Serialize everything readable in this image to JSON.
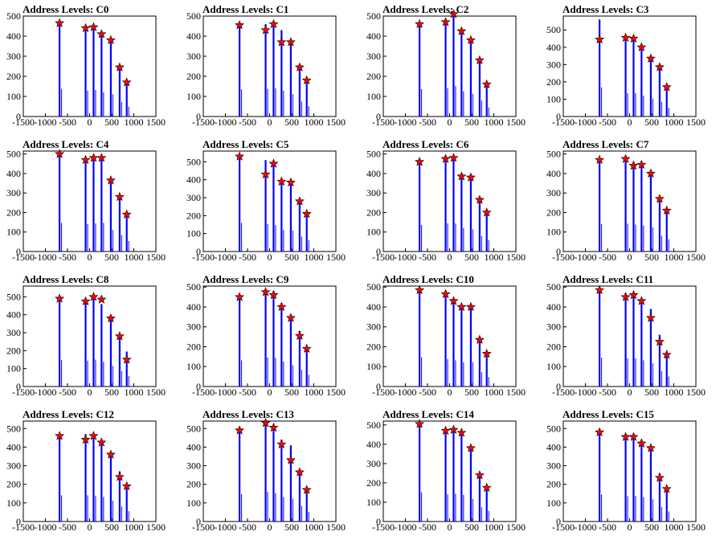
{
  "page": {
    "background": "#ffffff"
  },
  "style": {
    "hist_color": "#0000ff",
    "peak_marker_color": "#ff0000",
    "axis_color": "#000000"
  },
  "chart_data": [
    {
      "type": "bar",
      "title": "Address Levels: C0",
      "xlim": [
        -1500,
        1500
      ],
      "ylim": [
        0,
        500
      ],
      "xticks": [
        -1500,
        -1000,
        -500,
        0,
        500,
        1000,
        1500
      ],
      "yticks": [
        0,
        100,
        200,
        300,
        400,
        500
      ],
      "bars": [
        [
          -680,
          460
        ],
        [
          -90,
          430
        ],
        [
          90,
          440
        ],
        [
          270,
          400
        ],
        [
          480,
          370
        ],
        [
          680,
          245
        ],
        [
          840,
          165
        ]
      ],
      "peaks": [
        [
          -680,
          465
        ],
        [
          -90,
          440
        ],
        [
          90,
          445
        ],
        [
          270,
          410
        ],
        [
          480,
          380
        ],
        [
          680,
          245
        ],
        [
          840,
          170
        ]
      ]
    },
    {
      "type": "bar",
      "title": "Address Levels: C1",
      "xlim": [
        -1500,
        1500
      ],
      "ylim": [
        0,
        500
      ],
      "xticks": [
        -1500,
        -1000,
        -500,
        0,
        500,
        1000,
        1500
      ],
      "yticks": [
        0,
        100,
        200,
        300,
        400,
        500
      ],
      "bars": [
        [
          -680,
          450
        ],
        [
          -90,
          460
        ],
        [
          90,
          470
        ],
        [
          270,
          430
        ],
        [
          480,
          370
        ],
        [
          680,
          250
        ],
        [
          840,
          170
        ]
      ],
      "peaks": [
        [
          -680,
          455
        ],
        [
          -90,
          430
        ],
        [
          90,
          460
        ],
        [
          270,
          370
        ],
        [
          480,
          370
        ],
        [
          680,
          245
        ],
        [
          840,
          180
        ]
      ]
    },
    {
      "type": "bar",
      "title": "Address Levels: C2",
      "xlim": [
        -1500,
        1500
      ],
      "ylim": [
        0,
        500
      ],
      "xticks": [
        -1500,
        -1000,
        -500,
        0,
        500,
        1000,
        1500
      ],
      "yticks": [
        0,
        100,
        200,
        300,
        400,
        500
      ],
      "bars": [
        [
          -680,
          455
        ],
        [
          -90,
          470
        ],
        [
          90,
          505
        ],
        [
          270,
          420
        ],
        [
          480,
          380
        ],
        [
          680,
          270
        ],
        [
          840,
          150
        ]
      ],
      "peaks": [
        [
          -680,
          460
        ],
        [
          -90,
          470
        ],
        [
          90,
          510
        ],
        [
          270,
          425
        ],
        [
          480,
          380
        ],
        [
          680,
          280
        ],
        [
          840,
          160
        ]
      ]
    },
    {
      "type": "bar",
      "title": "Address Levels: C3",
      "xlim": [
        -1500,
        1500
      ],
      "ylim": [
        0,
        580
      ],
      "xticks": [
        -1500,
        -1000,
        -500,
        0,
        500,
        1000,
        1500
      ],
      "yticks": [
        0,
        100,
        200,
        300,
        400,
        500
      ],
      "bars": [
        [
          -680,
          560
        ],
        [
          -90,
          450
        ],
        [
          90,
          450
        ],
        [
          270,
          400
        ],
        [
          480,
          345
        ],
        [
          680,
          285
        ],
        [
          840,
          165
        ]
      ],
      "peaks": [
        [
          -680,
          445
        ],
        [
          -90,
          455
        ],
        [
          90,
          450
        ],
        [
          270,
          400
        ],
        [
          480,
          335
        ],
        [
          680,
          285
        ],
        [
          840,
          170
        ]
      ]
    },
    {
      "type": "bar",
      "title": "Address Levels: C4",
      "xlim": [
        -1500,
        1500
      ],
      "ylim": [
        0,
        515
      ],
      "xticks": [
        -1500,
        -1000,
        -500,
        0,
        500,
        1000,
        1500
      ],
      "yticks": [
        0,
        100,
        200,
        300,
        400,
        500
      ],
      "bars": [
        [
          -680,
          490
        ],
        [
          -90,
          470
        ],
        [
          90,
          480
        ],
        [
          270,
          490
        ],
        [
          480,
          370
        ],
        [
          680,
          280
        ],
        [
          840,
          180
        ]
      ],
      "peaks": [
        [
          -680,
          500
        ],
        [
          -90,
          470
        ],
        [
          90,
          480
        ],
        [
          270,
          480
        ],
        [
          480,
          365
        ],
        [
          680,
          280
        ],
        [
          840,
          190
        ]
      ]
    },
    {
      "type": "bar",
      "title": "Address Levels: C5",
      "xlim": [
        -1500,
        1500
      ],
      "ylim": [
        0,
        560
      ],
      "xticks": [
        -1500,
        -1000,
        -500,
        0,
        500,
        1000,
        1500
      ],
      "yticks": [
        0,
        100,
        200,
        300,
        400,
        500
      ],
      "bars": [
        [
          -680,
          530
        ],
        [
          -90,
          510
        ],
        [
          90,
          490
        ],
        [
          270,
          400
        ],
        [
          480,
          390
        ],
        [
          680,
          280
        ],
        [
          840,
          210
        ]
      ],
      "peaks": [
        [
          -680,
          530
        ],
        [
          -90,
          430
        ],
        [
          90,
          490
        ],
        [
          270,
          390
        ],
        [
          480,
          385
        ],
        [
          680,
          280
        ],
        [
          840,
          210
        ]
      ]
    },
    {
      "type": "bar",
      "title": "Address Levels: C6",
      "xlim": [
        -1500,
        1500
      ],
      "ylim": [
        0,
        515
      ],
      "xticks": [
        -1500,
        -1000,
        -500,
        0,
        500,
        1000,
        1500
      ],
      "yticks": [
        0,
        100,
        200,
        300,
        400,
        500
      ],
      "bars": [
        [
          -680,
          455
        ],
        [
          -90,
          480
        ],
        [
          90,
          480
        ],
        [
          270,
          400
        ],
        [
          480,
          380
        ],
        [
          680,
          265
        ],
        [
          840,
          195
        ]
      ],
      "peaks": [
        [
          -680,
          460
        ],
        [
          -90,
          475
        ],
        [
          90,
          480
        ],
        [
          270,
          385
        ],
        [
          480,
          380
        ],
        [
          680,
          265
        ],
        [
          840,
          200
        ]
      ]
    },
    {
      "type": "bar",
      "title": "Address Levels: C7",
      "xlim": [
        -1500,
        1500
      ],
      "ylim": [
        0,
        515
      ],
      "xticks": [
        -1500,
        -1000,
        -500,
        0,
        500,
        1000,
        1500
      ],
      "yticks": [
        0,
        100,
        200,
        300,
        400,
        500
      ],
      "bars": [
        [
          -680,
          470
        ],
        [
          -90,
          475
        ],
        [
          90,
          460
        ],
        [
          270,
          445
        ],
        [
          480,
          410
        ],
        [
          680,
          270
        ],
        [
          840,
          210
        ]
      ],
      "peaks": [
        [
          -680,
          470
        ],
        [
          -90,
          475
        ],
        [
          90,
          440
        ],
        [
          270,
          445
        ],
        [
          480,
          400
        ],
        [
          680,
          270
        ],
        [
          840,
          210
        ]
      ]
    },
    {
      "type": "bar",
      "title": "Address Levels: C8",
      "xlim": [
        -1500,
        1500
      ],
      "ylim": [
        0,
        560
      ],
      "xticks": [
        -1500,
        -1000,
        -500,
        0,
        500,
        1000,
        1500
      ],
      "yticks": [
        0,
        100,
        200,
        300,
        400,
        500
      ],
      "bars": [
        [
          -680,
          490
        ],
        [
          -90,
          480
        ],
        [
          90,
          500
        ],
        [
          270,
          460
        ],
        [
          480,
          385
        ],
        [
          680,
          290
        ],
        [
          840,
          195
        ]
      ],
      "peaks": [
        [
          -680,
          490
        ],
        [
          -90,
          475
        ],
        [
          90,
          500
        ],
        [
          270,
          485
        ],
        [
          480,
          380
        ],
        [
          680,
          280
        ],
        [
          840,
          150
        ]
      ]
    },
    {
      "type": "bar",
      "title": "Address Levels: C9",
      "xlim": [
        -1500,
        1500
      ],
      "ylim": [
        0,
        505
      ],
      "xticks": [
        -1500,
        -1000,
        -500,
        0,
        500,
        1000,
        1500
      ],
      "yticks": [
        0,
        100,
        200,
        300,
        400,
        500
      ],
      "bars": [
        [
          -680,
          440
        ],
        [
          -90,
          485
        ],
        [
          90,
          480
        ],
        [
          270,
          420
        ],
        [
          480,
          360
        ],
        [
          680,
          280
        ],
        [
          840,
          195
        ]
      ],
      "peaks": [
        [
          -680,
          450
        ],
        [
          -90,
          475
        ],
        [
          90,
          460
        ],
        [
          270,
          400
        ],
        [
          480,
          345
        ],
        [
          680,
          255
        ],
        [
          840,
          190
        ]
      ]
    },
    {
      "type": "bar",
      "title": "Address Levels: C10",
      "xlim": [
        -1500,
        1500
      ],
      "ylim": [
        0,
        505
      ],
      "xticks": [
        -1500,
        -1000,
        -500,
        0,
        500,
        1000,
        1500
      ],
      "yticks": [
        0,
        100,
        200,
        300,
        400,
        500
      ],
      "bars": [
        [
          -680,
          490
        ],
        [
          -90,
          460
        ],
        [
          90,
          440
        ],
        [
          270,
          405
        ],
        [
          480,
          410
        ],
        [
          680,
          240
        ],
        [
          840,
          160
        ]
      ],
      "peaks": [
        [
          -680,
          485
        ],
        [
          -90,
          465
        ],
        [
          90,
          430
        ],
        [
          270,
          400
        ],
        [
          480,
          400
        ],
        [
          680,
          235
        ],
        [
          840,
          165
        ]
      ]
    },
    {
      "type": "bar",
      "title": "Address Levels: C11",
      "xlim": [
        -1500,
        1500
      ],
      "ylim": [
        0,
        505
      ],
      "xticks": [
        -1500,
        -1000,
        -500,
        0,
        500,
        1000,
        1500
      ],
      "yticks": [
        0,
        100,
        200,
        300,
        400,
        500
      ],
      "bars": [
        [
          -680,
          485
        ],
        [
          -90,
          470
        ],
        [
          90,
          470
        ],
        [
          270,
          440
        ],
        [
          480,
          390
        ],
        [
          680,
          260
        ],
        [
          840,
          170
        ]
      ],
      "peaks": [
        [
          -680,
          485
        ],
        [
          -90,
          450
        ],
        [
          90,
          460
        ],
        [
          270,
          430
        ],
        [
          480,
          345
        ],
        [
          680,
          225
        ],
        [
          840,
          160
        ]
      ]
    },
    {
      "type": "bar",
      "title": "Address Levels: C12",
      "xlim": [
        -1500,
        1500
      ],
      "ylim": [
        0,
        540
      ],
      "xticks": [
        -1500,
        -1000,
        -500,
        0,
        500,
        1000,
        1500
      ],
      "yticks": [
        0,
        100,
        200,
        300,
        400,
        500
      ],
      "bars": [
        [
          -680,
          470
        ],
        [
          -90,
          470
        ],
        [
          90,
          460
        ],
        [
          270,
          440
        ],
        [
          480,
          375
        ],
        [
          680,
          270
        ],
        [
          840,
          185
        ]
      ],
      "peaks": [
        [
          -680,
          460
        ],
        [
          -90,
          440
        ],
        [
          90,
          460
        ],
        [
          270,
          425
        ],
        [
          480,
          360
        ],
        [
          680,
          240
        ],
        [
          840,
          190
        ]
      ]
    },
    {
      "type": "bar",
      "title": "Address Levels: C13",
      "xlim": [
        -1500,
        1500
      ],
      "ylim": [
        0,
        540
      ],
      "xticks": [
        -1500,
        -1000,
        -500,
        0,
        500,
        1000,
        1500
      ],
      "yticks": [
        0,
        100,
        200,
        300,
        400,
        500
      ],
      "bars": [
        [
          -680,
          490
        ],
        [
          -90,
          530
        ],
        [
          90,
          510
        ],
        [
          270,
          440
        ],
        [
          480,
          410
        ],
        [
          680,
          280
        ],
        [
          840,
          175
        ]
      ],
      "peaks": [
        [
          -680,
          490
        ],
        [
          -90,
          530
        ],
        [
          90,
          505
        ],
        [
          270,
          415
        ],
        [
          480,
          330
        ],
        [
          680,
          265
        ],
        [
          840,
          170
        ]
      ]
    },
    {
      "type": "bar",
      "title": "Address Levels: C14",
      "xlim": [
        -1500,
        1500
      ],
      "ylim": [
        0,
        520
      ],
      "xticks": [
        -1500,
        -1000,
        -500,
        0,
        500,
        1000,
        1500
      ],
      "yticks": [
        0,
        100,
        200,
        300,
        400,
        500
      ],
      "bars": [
        [
          -680,
          505
        ],
        [
          -90,
          470
        ],
        [
          90,
          480
        ],
        [
          270,
          460
        ],
        [
          480,
          390
        ],
        [
          680,
          245
        ],
        [
          840,
          185
        ]
      ],
      "peaks": [
        [
          -680,
          505
        ],
        [
          -90,
          470
        ],
        [
          90,
          475
        ],
        [
          270,
          460
        ],
        [
          480,
          380
        ],
        [
          680,
          240
        ],
        [
          840,
          175
        ]
      ]
    },
    {
      "type": "bar",
      "title": "Address Levels: C15",
      "xlim": [
        -1500,
        1500
      ],
      "ylim": [
        0,
        540
      ],
      "xticks": [
        -1500,
        -1000,
        -500,
        0,
        500,
        1000,
        1500
      ],
      "yticks": [
        0,
        100,
        200,
        300,
        400,
        500
      ],
      "bars": [
        [
          -680,
          485
        ],
        [
          -90,
          455
        ],
        [
          90,
          460
        ],
        [
          270,
          440
        ],
        [
          480,
          400
        ],
        [
          680,
          260
        ],
        [
          840,
          180
        ]
      ],
      "peaks": [
        [
          -680,
          480
        ],
        [
          -90,
          455
        ],
        [
          90,
          455
        ],
        [
          270,
          420
        ],
        [
          480,
          395
        ],
        [
          680,
          235
        ],
        [
          840,
          175
        ]
      ]
    }
  ]
}
